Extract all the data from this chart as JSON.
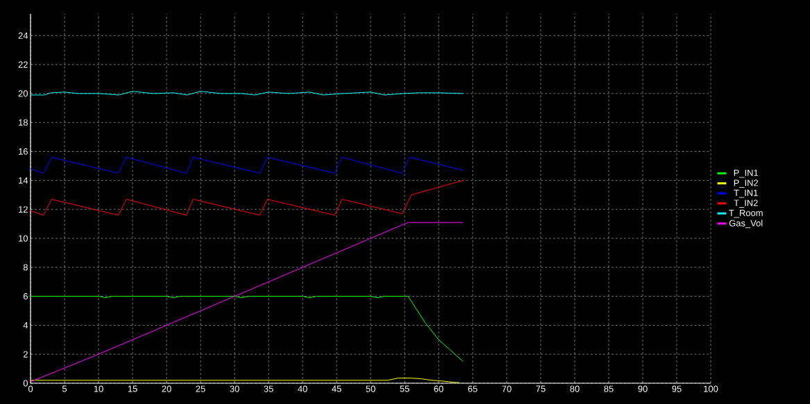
{
  "chart_data": {
    "type": "line",
    "xlim": [
      0,
      100
    ],
    "ylim": [
      0,
      25.5
    ],
    "xticks": [
      0,
      5,
      10,
      15,
      20,
      25,
      30,
      35,
      40,
      45,
      50,
      55,
      60,
      65,
      70,
      75,
      80,
      85,
      90,
      95,
      100
    ],
    "yticks": [
      0,
      2,
      4,
      6,
      8,
      10,
      12,
      14,
      16,
      18,
      20,
      22,
      24
    ],
    "grid": true,
    "legend": "right",
    "series": [
      {
        "name": "P_IN1",
        "color": "#00ff00",
        "x": [
          0,
          10,
          11,
          12,
          20,
          21,
          22,
          30,
          31,
          32,
          40,
          41,
          42,
          50,
          51,
          52,
          55.5,
          58,
          60,
          63.6
        ],
        "values": [
          6,
          6,
          5.9,
          6,
          6,
          5.9,
          6,
          6,
          5.9,
          6,
          6,
          5.9,
          6,
          6,
          5.9,
          6,
          6,
          4.2,
          3,
          1.5
        ]
      },
      {
        "name": "P_IN2",
        "color": "#ffff00",
        "x": [
          0,
          52.5,
          54,
          56,
          57.5,
          59,
          60.5,
          62.5,
          63
        ],
        "values": [
          0.2,
          0.2,
          0.35,
          0.35,
          0.3,
          0.2,
          0.15,
          0.05,
          0.05
        ]
      },
      {
        "name": "T_IN1",
        "color": "#0000ff",
        "x": [
          0,
          1.9,
          3.1,
          12.9,
          14.1,
          22.9,
          23.9,
          33.7,
          34.8,
          44.7,
          45.8,
          54.6,
          55.7,
          63.6
        ],
        "values": [
          14.8,
          14.5,
          15.6,
          14.5,
          15.6,
          14.5,
          15.6,
          14.5,
          15.6,
          14.5,
          15.6,
          14.5,
          15.6,
          14.7
        ]
      },
      {
        "name": "T_IN2",
        "color": "#ff0000",
        "x": [
          0,
          1.9,
          3.1,
          12.9,
          14.1,
          22.9,
          23.9,
          33.7,
          34.8,
          44.7,
          45.8,
          54.6,
          56,
          63.6
        ],
        "values": [
          11.9,
          11.6,
          12.7,
          11.6,
          12.7,
          11.6,
          12.7,
          11.6,
          12.7,
          11.6,
          12.7,
          11.7,
          13.0,
          14.0
        ]
      },
      {
        "name": "T_Room",
        "color": "#00ffff",
        "x": [
          0,
          2,
          3,
          5,
          7,
          10,
          13,
          15,
          18,
          21,
          23,
          25,
          28,
          31,
          33,
          35,
          38,
          41,
          43,
          46,
          50,
          52,
          55,
          57,
          60,
          63.6
        ],
        "values": [
          19.9,
          19.9,
          20.05,
          20.1,
          20,
          20,
          19.9,
          20.15,
          20,
          20.05,
          19.9,
          20.15,
          20,
          20,
          19.9,
          20.1,
          20,
          20.1,
          19.9,
          20,
          20.1,
          19.9,
          20,
          20.05,
          20.05,
          20
        ]
      },
      {
        "name": "Gas_Vol",
        "color": "#ff00ff",
        "x": [
          0,
          10,
          20,
          30,
          40,
          50,
          55.5,
          63.6
        ],
        "values": [
          0.1,
          2.0,
          4.0,
          6.0,
          8.0,
          10.0,
          11.1,
          11.1
        ]
      }
    ]
  }
}
